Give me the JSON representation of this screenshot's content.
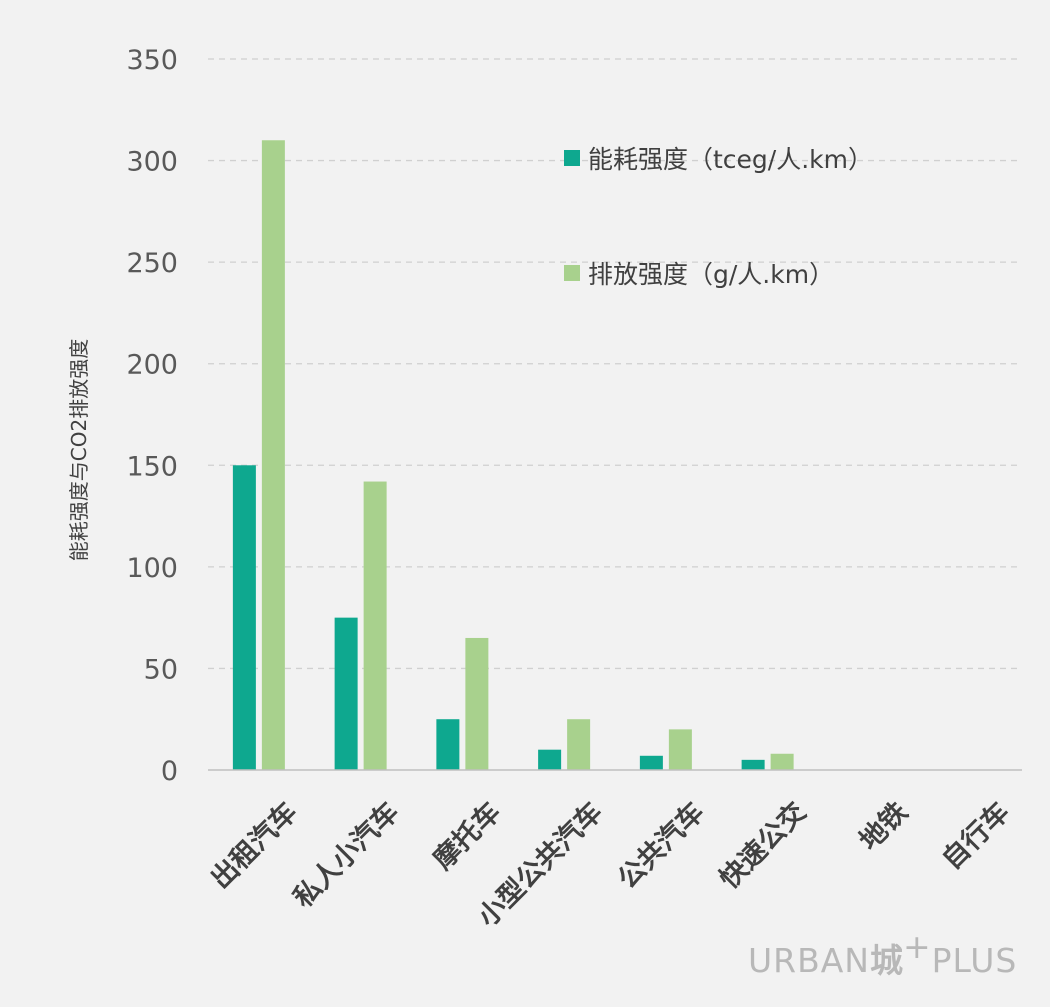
{
  "chart_data": {
    "type": "bar",
    "categories": [
      "出租汽车",
      "私人小汽车",
      "摩托车",
      "小型公共汽车",
      "公共汽车",
      "快速公交",
      "地铁",
      "自行车"
    ],
    "series": [
      {
        "name": "能耗强度（tceg/人.km）",
        "values": [
          150,
          75,
          25,
          10,
          7,
          5,
          0,
          0
        ],
        "color": "#0ea88f"
      },
      {
        "name": "排放强度（g/人.km）",
        "values": [
          310,
          142,
          65,
          25,
          20,
          8,
          0,
          0
        ],
        "color": "#a8d18d"
      }
    ],
    "ylabel": "能耗强度与CO2排放强度",
    "xlabel": "",
    "ylim": [
      0,
      350
    ],
    "yticks": [
      0,
      50,
      100,
      150,
      200,
      250,
      300,
      350
    ],
    "grid": true,
    "legend_position": "top-right"
  },
  "logo": {
    "part1": "URBAN",
    "part2": "城",
    "part3": "PLUS"
  },
  "colors": {
    "background": "#f2f2f2",
    "grid": "#d0d0d0",
    "axis": "#bfbfbf",
    "logo": "#b8b8b8"
  }
}
